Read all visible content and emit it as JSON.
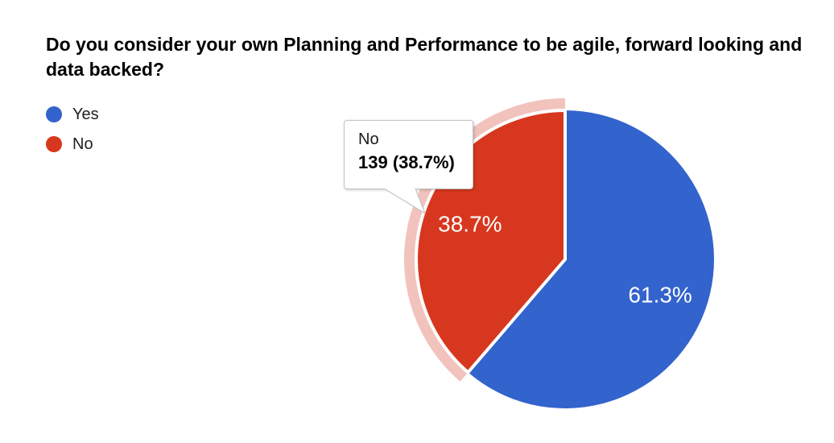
{
  "title": "Do you consider your own Planning and Performance to be agile, forward looking and data backed?",
  "legend": {
    "items": [
      {
        "label": "Yes",
        "color": "#3363cc"
      },
      {
        "label": "No",
        "color": "#d7371e"
      }
    ]
  },
  "tooltip": {
    "label": "No",
    "value_text": "139 (38.7%)"
  },
  "chart_data": {
    "type": "pie",
    "title": "Do you consider your own Planning and Performance to be agile, forward looking and data backed?",
    "categories": [
      "Yes",
      "No"
    ],
    "percentages": [
      61.3,
      38.7
    ],
    "slice_labels": [
      "61.3%",
      "38.7%"
    ],
    "colors": [
      "#3363cc",
      "#d7371e"
    ],
    "label_color": "#ffffff",
    "start_angle_deg": 0,
    "direction": "clockwise",
    "legend_position": "top-left",
    "legend_visible": true,
    "highlight": {
      "category": "No",
      "count": 139,
      "halo_color": "#f2c2bc",
      "tooltip_text": "139 (38.7%)"
    }
  }
}
